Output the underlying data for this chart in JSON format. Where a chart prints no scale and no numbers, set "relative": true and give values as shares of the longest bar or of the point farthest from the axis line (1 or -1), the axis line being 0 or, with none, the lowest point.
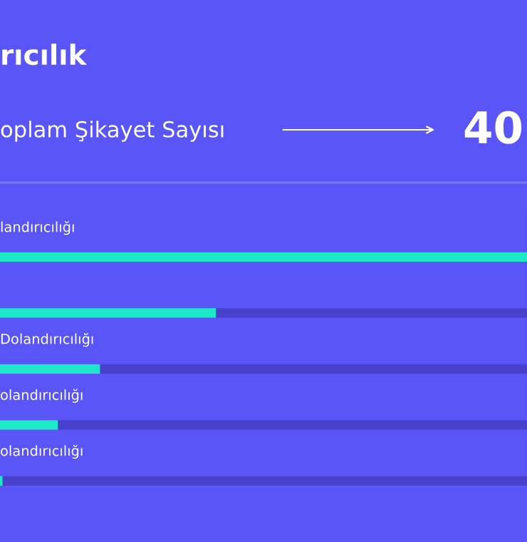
{
  "chart_data": {
    "type": "bar",
    "orientation": "horizontal",
    "relative": true,
    "stacked": true,
    "title": "rıcılık",
    "annotations": [
      "oplam Şikayet Sayısı",
      "40"
    ],
    "categories": [
      "landırıcılığı",
      null,
      "Dolandırıcılığı",
      "olandırıcılığı",
      "olandırıcılığı"
    ],
    "series": [
      {
        "color": "#1de9c8",
        "values": [
          1,
          0.41,
          0.19,
          0.11,
          0.005
        ]
      },
      {
        "color": "#4741cc",
        "values": [
          0,
          0.59,
          0.81,
          0.89,
          0.995
        ]
      }
    ]
  }
}
